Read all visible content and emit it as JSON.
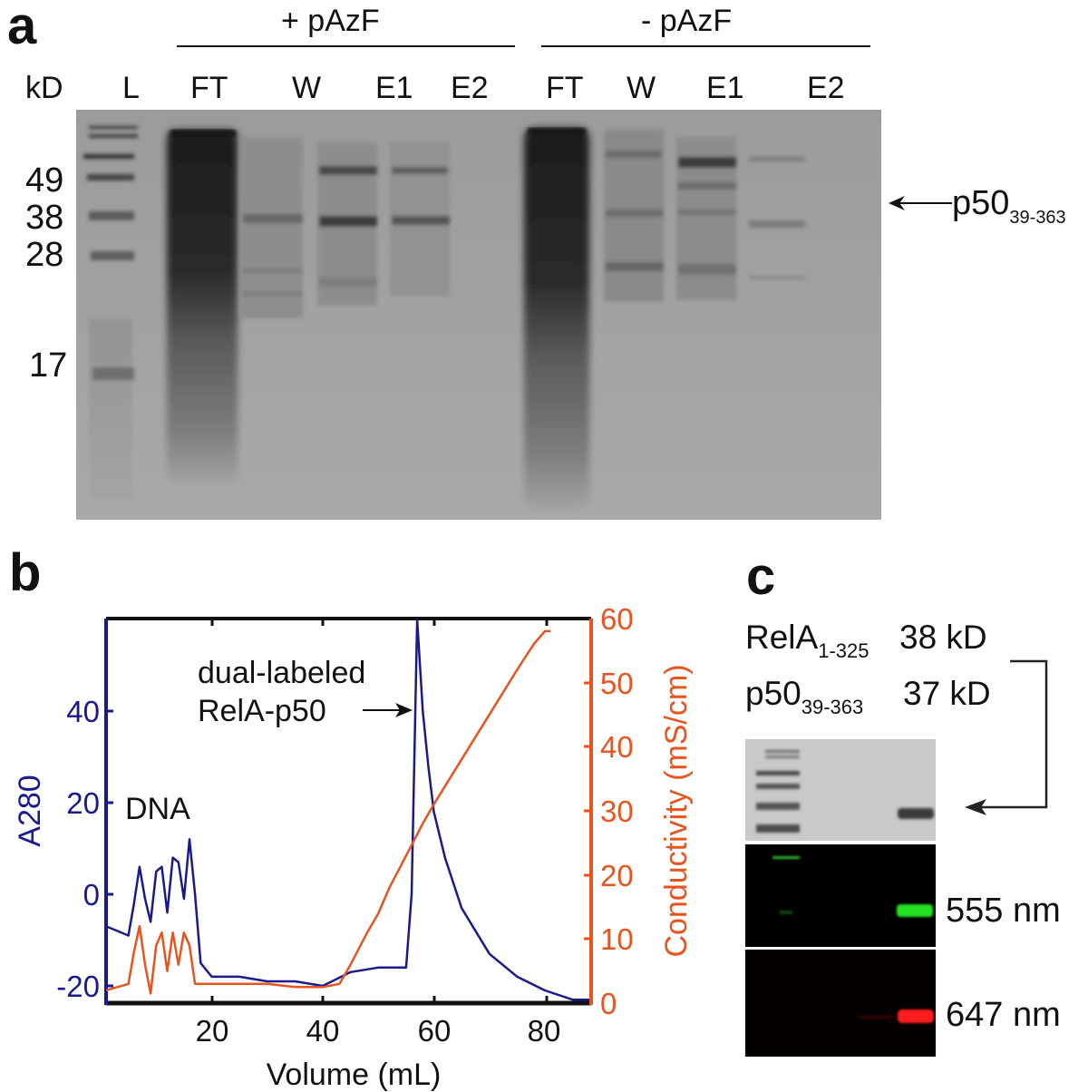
{
  "panel_a": {
    "letter": "a",
    "group_plus": "+ pAzF",
    "group_minus": "- pAzF",
    "unit_label": "kD",
    "lane_labels": [
      "L",
      "FT",
      "W",
      "E1",
      "E2",
      "FT",
      "W",
      "E1",
      "E2"
    ],
    "marker_labels": [
      "49",
      "38",
      "28",
      "17"
    ],
    "arrow_label_main": "p50",
    "arrow_label_sub": "39-363"
  },
  "panel_b": {
    "letter": "b",
    "annotation_dna": "DNA",
    "annotation_peak_line1": "dual-labeled",
    "annotation_peak_line2": "RelA-p50",
    "colors": {
      "a280": "#1a1a8c",
      "conductivity": "#e8531e",
      "axis": "#111111"
    }
  },
  "panel_c": {
    "letter": "c",
    "row1_main": "RelA",
    "row1_sub": "1-325",
    "row1_mw": "38 kD",
    "row2_main": "p50",
    "row2_sub": "39-363",
    "row2_mw": "37 kD",
    "band_label_green": "555 nm",
    "band_label_red": "647 nm",
    "colors": {
      "green": "#22e022",
      "red": "#ff1a1a"
    }
  },
  "chart_data": [
    {
      "type": "line",
      "title": "",
      "xlabel": "Volume (mL)",
      "ylabel": "A280",
      "y2label": "Conductivity (mS/cm)",
      "xlim": [
        1,
        88
      ],
      "ylim": [
        -24,
        60
      ],
      "y2lim": [
        0,
        60
      ],
      "x_ticks": [
        20,
        40,
        60,
        80
      ],
      "y_ticks": [
        -20,
        0,
        20,
        40
      ],
      "y2_ticks": [
        0,
        10,
        20,
        30,
        40,
        50,
        60
      ],
      "grid": false,
      "legend": "none (axis labels colored by series)",
      "annotations": [
        "DNA",
        "dual-labeled RelA-p50 →"
      ],
      "series": [
        {
          "name": "A280",
          "axis": "left",
          "color": "#1a1a8c",
          "x": [
            1,
            3,
            5,
            6,
            7,
            8,
            9,
            10,
            11,
            12,
            13,
            14,
            15,
            16,
            17,
            18,
            20,
            25,
            30,
            35,
            40,
            45,
            50,
            55,
            56,
            57,
            58,
            59,
            60,
            62,
            65,
            70,
            75,
            80,
            85,
            88
          ],
          "y": [
            -7,
            -8,
            -9,
            -2,
            6,
            -1,
            -6,
            5,
            6,
            -4,
            8,
            7,
            -1,
            12,
            0,
            -15,
            -18,
            -18,
            -19,
            -19,
            -20,
            -17,
            -16,
            -16,
            0,
            60,
            40,
            28,
            18,
            8,
            -3,
            -13,
            -18,
            -21,
            -23,
            -23
          ]
        },
        {
          "name": "Conductivity",
          "axis": "right",
          "unit": "mS/cm",
          "color": "#e8531e",
          "x": [
            1,
            3,
            5,
            6,
            7,
            8,
            9,
            10,
            11,
            12,
            13,
            14,
            15,
            16,
            17,
            20,
            25,
            30,
            35,
            40,
            43,
            45,
            48,
            50,
            52,
            55,
            58,
            60,
            65,
            70,
            75,
            78,
            80,
            81
          ],
          "y": [
            2,
            2.5,
            3,
            8,
            12,
            6,
            1.5,
            9,
            11,
            5,
            11,
            6,
            11,
            9,
            3,
            3,
            3,
            3,
            2.5,
            2.5,
            3,
            6,
            11,
            14,
            18,
            23,
            28,
            31,
            38,
            45,
            52,
            56,
            58,
            58
          ]
        }
      ]
    }
  ]
}
